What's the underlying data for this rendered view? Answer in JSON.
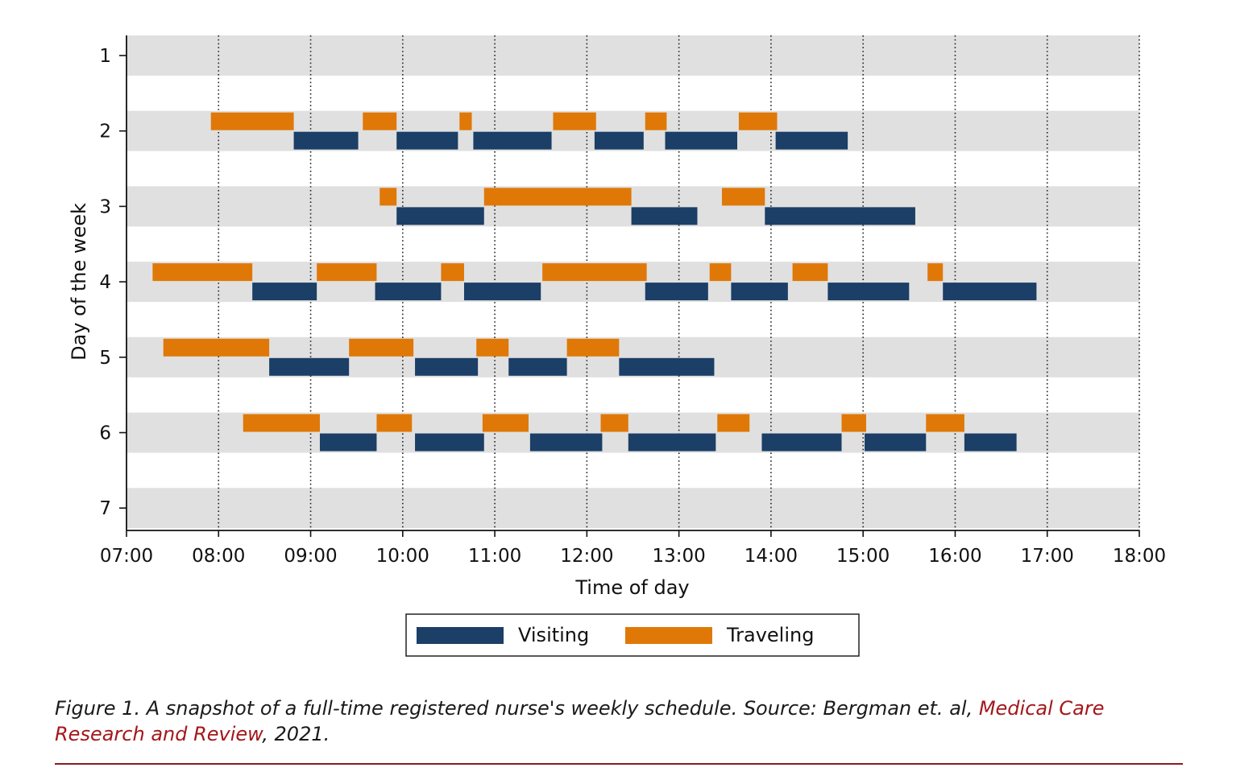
{
  "chart_data": {
    "type": "gantt",
    "xlabel": "Time of day",
    "ylabel": "Day of the week",
    "xlim": [
      "07:00",
      "18:00"
    ],
    "x_ticks": [
      "07:00",
      "08:00",
      "09:00",
      "10:00",
      "11:00",
      "12:00",
      "13:00",
      "14:00",
      "15:00",
      "16:00",
      "17:00",
      "18:00"
    ],
    "days": [
      "1",
      "2",
      "3",
      "4",
      "5",
      "6",
      "7"
    ],
    "grid": "vertical dotted at each hour",
    "legend": {
      "position": "bottom-center"
    },
    "series": [
      {
        "name": "Visiting",
        "color": "#1b3f66",
        "segments": [
          {
            "day": "2",
            "start": "08:49",
            "end": "09:31"
          },
          {
            "day": "2",
            "start": "09:56",
            "end": "10:36"
          },
          {
            "day": "2",
            "start": "10:46",
            "end": "11:37"
          },
          {
            "day": "2",
            "start": "12:05",
            "end": "12:37"
          },
          {
            "day": "2",
            "start": "12:51",
            "end": "13:38"
          },
          {
            "day": "2",
            "start": "14:03",
            "end": "14:50"
          },
          {
            "day": "3",
            "start": "09:56",
            "end": "10:53"
          },
          {
            "day": "3",
            "start": "12:29",
            "end": "13:12"
          },
          {
            "day": "3",
            "start": "13:56",
            "end": "15:34"
          },
          {
            "day": "4",
            "start": "08:22",
            "end": "09:04"
          },
          {
            "day": "4",
            "start": "09:42",
            "end": "10:25"
          },
          {
            "day": "4",
            "start": "10:40",
            "end": "11:30"
          },
          {
            "day": "4",
            "start": "12:38",
            "end": "13:19"
          },
          {
            "day": "4",
            "start": "13:34",
            "end": "14:11"
          },
          {
            "day": "4",
            "start": "14:37",
            "end": "15:30"
          },
          {
            "day": "4",
            "start": "15:52",
            "end": "16:53"
          },
          {
            "day": "5",
            "start": "08:33",
            "end": "09:25"
          },
          {
            "day": "5",
            "start": "10:08",
            "end": "10:49"
          },
          {
            "day": "5",
            "start": "11:09",
            "end": "11:47"
          },
          {
            "day": "5",
            "start": "12:21",
            "end": "13:23"
          },
          {
            "day": "6",
            "start": "09:06",
            "end": "09:43"
          },
          {
            "day": "6",
            "start": "10:08",
            "end": "10:53"
          },
          {
            "day": "6",
            "start": "11:23",
            "end": "12:10"
          },
          {
            "day": "6",
            "start": "12:27",
            "end": "13:24"
          },
          {
            "day": "6",
            "start": "13:54",
            "end": "14:46"
          },
          {
            "day": "6",
            "start": "15:01",
            "end": "15:41"
          },
          {
            "day": "6",
            "start": "16:06",
            "end": "16:40"
          }
        ]
      },
      {
        "name": "Traveling",
        "color": "#e07808",
        "segments": [
          {
            "day": "2",
            "start": "07:55",
            "end": "08:49"
          },
          {
            "day": "2",
            "start": "09:34",
            "end": "09:56"
          },
          {
            "day": "2",
            "start": "10:37",
            "end": "10:45"
          },
          {
            "day": "2",
            "start": "11:38",
            "end": "12:06"
          },
          {
            "day": "2",
            "start": "12:38",
            "end": "12:52"
          },
          {
            "day": "2",
            "start": "13:39",
            "end": "14:04"
          },
          {
            "day": "3",
            "start": "09:45",
            "end": "09:56"
          },
          {
            "day": "3",
            "start": "10:53",
            "end": "12:29"
          },
          {
            "day": "3",
            "start": "13:28",
            "end": "13:56"
          },
          {
            "day": "4",
            "start": "07:17",
            "end": "08:22"
          },
          {
            "day": "4",
            "start": "09:04",
            "end": "09:43"
          },
          {
            "day": "4",
            "start": "10:25",
            "end": "10:40"
          },
          {
            "day": "4",
            "start": "11:31",
            "end": "12:39"
          },
          {
            "day": "4",
            "start": "13:20",
            "end": "13:34"
          },
          {
            "day": "4",
            "start": "14:14",
            "end": "14:37"
          },
          {
            "day": "4",
            "start": "15:42",
            "end": "15:52"
          },
          {
            "day": "5",
            "start": "07:24",
            "end": "08:33"
          },
          {
            "day": "5",
            "start": "09:25",
            "end": "10:07"
          },
          {
            "day": "5",
            "start": "10:48",
            "end": "11:09"
          },
          {
            "day": "5",
            "start": "11:47",
            "end": "12:21"
          },
          {
            "day": "6",
            "start": "08:16",
            "end": "09:06"
          },
          {
            "day": "6",
            "start": "09:43",
            "end": "10:06"
          },
          {
            "day": "6",
            "start": "10:52",
            "end": "11:22"
          },
          {
            "day": "6",
            "start": "12:09",
            "end": "12:27"
          },
          {
            "day": "6",
            "start": "13:25",
            "end": "13:46"
          },
          {
            "day": "6",
            "start": "14:46",
            "end": "15:02"
          },
          {
            "day": "6",
            "start": "15:41",
            "end": "16:06"
          }
        ]
      }
    ]
  },
  "caption": {
    "prefix": "Figure 1. A snapshot of a full-time registered nurse's weekly schedule. Source: Bergman et. al, ",
    "link": "Medical Care Research and Review",
    "suffix": ", 2021."
  }
}
